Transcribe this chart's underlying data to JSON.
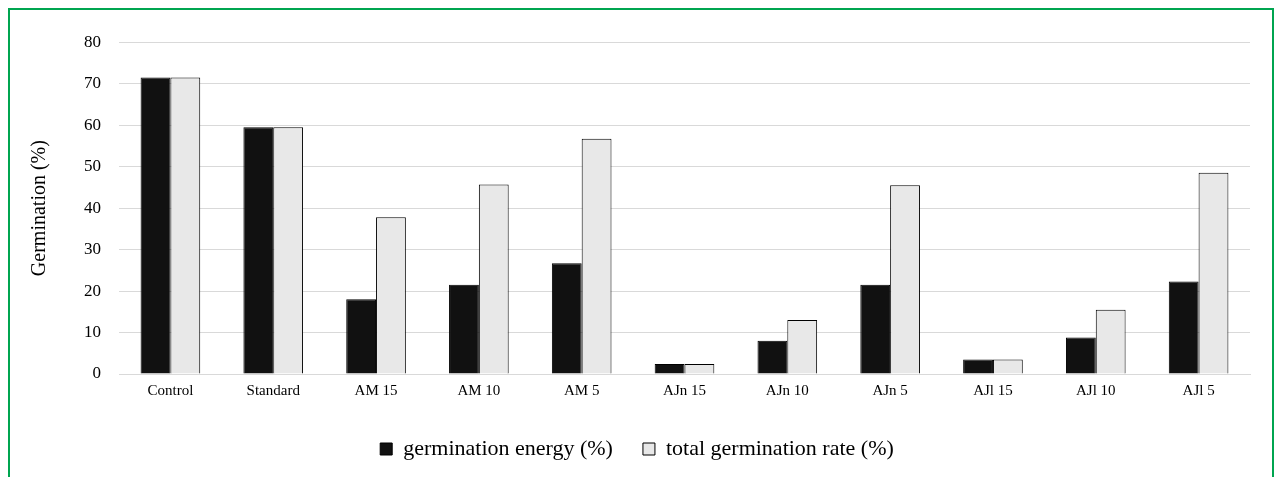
{
  "chart_data": {
    "type": "bar",
    "ylabel": "Germination (%)",
    "categories": [
      "Control",
      "Standard",
      "AM 15",
      "AM 10",
      "AM 5",
      "AJn 15",
      "AJn 10",
      "AJn 5",
      "AJl 15",
      "AJl 10",
      "AJl 5"
    ],
    "series": [
      {
        "name": "germination energy (%)",
        "color": "#111111",
        "values": [
          71.5,
          59.5,
          18,
          21.5,
          26.7,
          2.4,
          8,
          21.5,
          3.5,
          8.8,
          22.3
        ]
      },
      {
        "name": "total germination rate (%)",
        "color": "#e8e8e8",
        "values": [
          71.5,
          59.5,
          37.8,
          45.7,
          56.7,
          2.4,
          13,
          45.5,
          3.5,
          15.5,
          48.5
        ]
      }
    ],
    "ylim": [
      0,
      80
    ],
    "yticks": [
      0,
      10,
      20,
      30,
      40,
      50,
      60,
      70,
      80
    ],
    "grid": "y",
    "legend": "bottom"
  }
}
